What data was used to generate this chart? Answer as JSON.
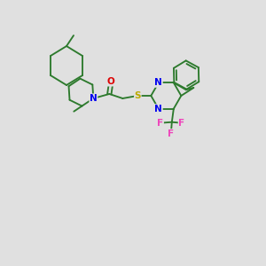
{
  "background_color": "#e0e0e0",
  "bond_color": "#2d7a2d",
  "atom_colors": {
    "N": "#0000ee",
    "O": "#dd0000",
    "S": "#bbaa00",
    "F": "#ee44bb",
    "C": "#2d7a2d"
  },
  "figsize": [
    3.0,
    3.0
  ],
  "dpi": 100,
  "lw": 1.35
}
